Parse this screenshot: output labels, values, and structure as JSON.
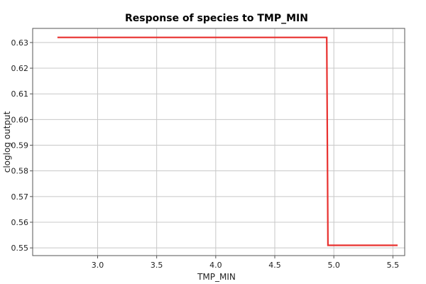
{
  "chart_data": {
    "type": "line",
    "title": "Response of species to TMP_MIN",
    "xlabel": "TMP_MIN",
    "ylabel": "cloglog output",
    "xlim": [
      2.45,
      5.6
    ],
    "ylim": [
      0.547,
      0.6355
    ],
    "x_ticks": [
      3.0,
      3.5,
      4.0,
      4.5,
      5.0,
      5.5
    ],
    "x_tick_labels": [
      "3.0",
      "3.5",
      "4.0",
      "4.5",
      "5.0",
      "5.5"
    ],
    "y_ticks": [
      0.55,
      0.56,
      0.57,
      0.58,
      0.59,
      0.6,
      0.61,
      0.62,
      0.63
    ],
    "y_tick_labels": [
      "0.55",
      "0.56",
      "0.57",
      "0.58",
      "0.59",
      "0.60",
      "0.61",
      "0.62",
      "0.63"
    ],
    "grid": true,
    "series": [
      {
        "color": "#e8302e",
        "x": [
          2.66,
          4.94,
          4.95,
          5.54
        ],
        "y": [
          0.632,
          0.632,
          0.551,
          0.551
        ]
      }
    ]
  }
}
